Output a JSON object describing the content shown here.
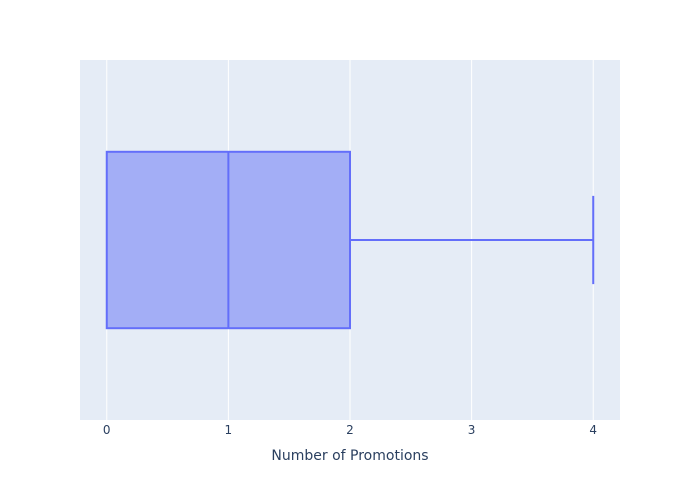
{
  "chart_data": {
    "type": "box",
    "orientation": "horizontal",
    "title": "",
    "xlabel": "Number of Promotions",
    "ylabel": "",
    "xlim": [
      -0.22,
      4.22
    ],
    "x_ticks": [
      0,
      1,
      2,
      3,
      4
    ],
    "x_tick_labels": [
      "0",
      "1",
      "2",
      "3",
      "4"
    ],
    "grid": true,
    "box": {
      "min": 0,
      "q1": 0,
      "median": 1,
      "q3": 2,
      "max": 4
    },
    "colors": {
      "plot_bg": "#e5ecf6",
      "grid": "#ffffff",
      "box_fill": "#a3aef6",
      "box_line": "#636efa",
      "text": "#2a3f5f"
    }
  }
}
